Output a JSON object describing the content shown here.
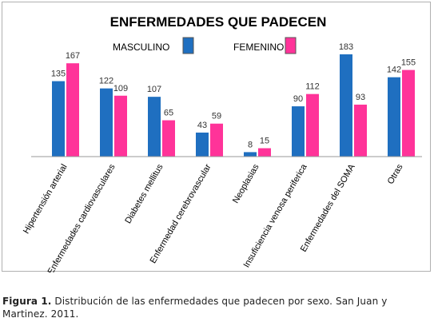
{
  "chart_data": {
    "type": "bar",
    "title": "ENFERMEDADES QUE PADECEN",
    "categories": [
      "Hipertensión arterial",
      "Enfermedades cardiovasculares",
      "Diabetes mellitus",
      "Enfermedad cerebrovascular",
      "Neoplasias",
      "Insuficiencia venosa periferica",
      "Enfermedades del SOMA",
      "Otras"
    ],
    "series": [
      {
        "name": "MASCULINO",
        "color": "#1f6fc0",
        "values": [
          135,
          122,
          107,
          43,
          8,
          90,
          183,
          142
        ]
      },
      {
        "name": "FEMENINO",
        "color": "#ff3399",
        "values": [
          167,
          109,
          65,
          59,
          15,
          112,
          93,
          155
        ]
      }
    ],
    "ylim": [
      0,
      190
    ],
    "grid": false,
    "legend": "top-center"
  },
  "caption": {
    "label": "Figura 1.",
    "text": " Distribución de las enfermedades que padecen por sexo. San Juan y Martinez. 2011."
  }
}
